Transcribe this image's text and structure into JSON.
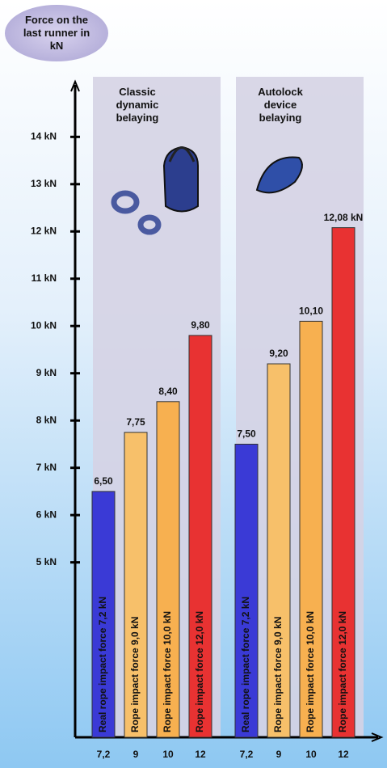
{
  "chart_data": {
    "type": "bar",
    "title": "Force on the last runner in kN",
    "ylim": [
      1.3,
      15.1
    ],
    "yticks": [
      {
        "value": 5,
        "label": "5 kN"
      },
      {
        "value": 6,
        "label": "6 kN"
      },
      {
        "value": 7,
        "label": "7 kN"
      },
      {
        "value": 8,
        "label": "8 kN"
      },
      {
        "value": 9,
        "label": "9 kN"
      },
      {
        "value": 10,
        "label": "10 kN"
      },
      {
        "value": 11,
        "label": "11 kN"
      },
      {
        "value": 12,
        "label": "12 kN"
      },
      {
        "value": 13,
        "label": "13 kN"
      },
      {
        "value": 14,
        "label": "14 kN"
      }
    ],
    "groups": [
      {
        "name": "Classic dynamic belaying",
        "categories": [
          "7,2",
          "9",
          "10",
          "12"
        ],
        "values": [
          6.5,
          7.75,
          8.4,
          9.8
        ],
        "value_labels": [
          "6,50",
          "7,75",
          "8,40",
          "9,80"
        ],
        "bar_labels": [
          "Real rope impact force 7,2 kN",
          "Rope impact force 9,0 kN",
          "Rope impact force 10,0 kN",
          "Rope impact force 12,0 kN"
        ],
        "colors": [
          "#3a3ad6",
          "#f7c06a",
          "#f7b050",
          "#e83232"
        ]
      },
      {
        "name": "Autolock device belaying",
        "categories": [
          "7,2",
          "9",
          "10",
          "12"
        ],
        "values": [
          7.5,
          9.2,
          10.1,
          12.08
        ],
        "value_labels": [
          "7,50",
          "9,20",
          "10,10",
          "12,08 kN"
        ],
        "bar_labels": [
          "Real rope impact force 7,2 kN",
          "Rope impact force 9,0 kN",
          "Rope impact force 10,0 kN",
          "Rope impact force 12,0 kN"
        ],
        "colors": [
          "#3a3ad6",
          "#f7c06a",
          "#f7b050",
          "#e83232"
        ]
      }
    ]
  }
}
